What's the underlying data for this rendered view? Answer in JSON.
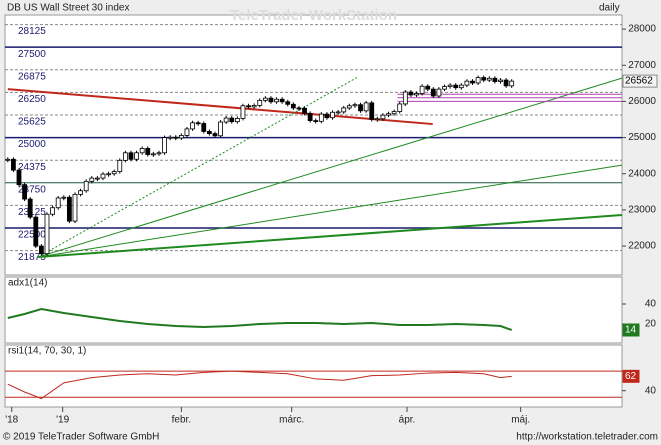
{
  "chart_data": [
    {
      "type": "candlestick",
      "title": "DB US Wall Street 30 index",
      "period": "daily",
      "watermark": "TeleTrader WorkStation",
      "x": [
        0,
        1,
        2,
        3,
        4,
        5,
        6,
        7,
        8,
        9,
        10,
        11,
        12,
        13,
        14,
        15,
        16,
        17,
        18,
        19,
        20,
        21,
        22,
        23,
        24,
        25,
        26,
        27,
        28,
        29,
        30,
        31,
        32,
        33,
        34,
        35,
        36,
        37,
        38,
        39,
        40,
        41,
        42,
        43,
        44,
        45,
        46,
        47,
        48,
        49,
        50,
        51,
        52,
        53,
        54,
        55,
        56,
        57,
        58,
        59,
        60,
        61,
        62,
        63,
        64,
        65,
        66,
        67,
        68,
        69,
        70,
        71,
        72,
        73,
        74,
        75,
        76,
        77,
        78,
        79,
        80,
        81,
        82,
        83,
        84,
        85,
        86,
        87,
        88,
        89,
        90
      ],
      "values": [
        24400,
        24100,
        23700,
        23300,
        22800,
        22000,
        21790,
        22880,
        23060,
        23330,
        23350,
        22690,
        23430,
        23530,
        23790,
        23880,
        23880,
        23990,
        24000,
        24060,
        24370,
        24580,
        24400,
        24580,
        24700,
        24530,
        24550,
        24580,
        25000,
        25010,
        24990,
        25060,
        25240,
        25410,
        25390,
        25170,
        25110,
        25050,
        25430,
        25540,
        25440,
        25530,
        25880,
        25850,
        25890,
        26030,
        26090,
        25990,
        26060,
        25990,
        25920,
        25820,
        25810,
        25670,
        25470,
        25450,
        25650,
        25550,
        25700,
        25710,
        25820,
        25880,
        25910,
        25740,
        25960,
        25500,
        25520,
        25620,
        25660,
        25720,
        25930,
        26260,
        26180,
        26220,
        26420,
        26340,
        26150,
        26340,
        26410,
        26450,
        26380,
        26450,
        26560,
        26510,
        26660,
        26590,
        26640,
        26550,
        26590,
        26430,
        26560
      ],
      "last_value": 26562,
      "xlim": [
        -0.5,
        109.7
      ],
      "ylim": [
        21200,
        28390
      ],
      "yticks": [
        22000,
        23000,
        24000,
        25000,
        26000,
        27000,
        28000
      ],
      "xticks": [
        {
          "value": 0.7,
          "label": "'18"
        },
        {
          "value": 9.8,
          "label": "'19"
        },
        {
          "value": 31,
          "label": "febr."
        },
        {
          "value": 50.7,
          "label": "márc."
        },
        {
          "value": 71.3,
          "label": "ápr."
        },
        {
          "value": 91.6,
          "label": "máj."
        }
      ],
      "levels": [
        {
          "value": 28125,
          "style": "dashed"
        },
        {
          "value": 27500,
          "style": "solid"
        },
        {
          "value": 26875,
          "style": "dashed"
        },
        {
          "value": 26250,
          "style": "dashed"
        },
        {
          "value": 25625,
          "style": "dashed"
        },
        {
          "value": 25000,
          "style": "solid"
        },
        {
          "value": 24375,
          "style": "dashed"
        },
        {
          "value": 23750,
          "style": "thin"
        },
        {
          "value": 23125,
          "style": "dashed"
        },
        {
          "value": 22500,
          "style": "solid"
        },
        {
          "value": 21875,
          "style": "dashed"
        }
      ],
      "trendlines": [
        {
          "color": "#c0281c",
          "width": 2,
          "x": [
            0,
            75.9
          ],
          "y": [
            26341,
            25374
          ]
        },
        {
          "color": "#1f8a1f",
          "width": 1,
          "x": [
            5.4,
            109.7
          ],
          "y": [
            21696,
            26645
          ]
        },
        {
          "color": "#1f8a1f",
          "width": 1,
          "x": [
            5.4,
            109.7
          ],
          "y": [
            21696,
            24240
          ]
        },
        {
          "color": "#1f8a1f",
          "width": 2,
          "x": [
            5.4,
            109.7
          ],
          "y": [
            21696,
            22858
          ]
        },
        {
          "color": "#1f8a1f",
          "width": 1,
          "dash": true,
          "x": [
            5.4,
            62.5
          ],
          "y": [
            21696,
            26673
          ]
        },
        {
          "color": "#b040b0",
          "width": 1,
          "x": [
            69.6,
            109.7
          ],
          "y": [
            26200,
            26200
          ]
        },
        {
          "color": "#b040b0",
          "width": 1,
          "x": [
            69.6,
            109.7
          ],
          "y": [
            26100,
            26100
          ]
        },
        {
          "color": "#b040b0",
          "width": 1,
          "x": [
            69.6,
            109.7
          ],
          "y": [
            26000,
            26000
          ]
        }
      ]
    },
    {
      "type": "line",
      "title": "adx1(14)",
      "color": "#1f7a1f",
      "x": [
        0,
        3,
        6,
        10,
        15,
        20,
        25,
        30,
        35,
        40,
        45,
        50,
        55,
        60,
        65,
        70,
        75,
        80,
        85,
        88,
        90
      ],
      "values": [
        26,
        30,
        35,
        31,
        27,
        23,
        20,
        18,
        17,
        18,
        20,
        21,
        21,
        20,
        21,
        19,
        19,
        20,
        19,
        18,
        14
      ],
      "last_value": 14,
      "ylim": [
        1,
        67
      ],
      "yticks": [
        20,
        40
      ]
    },
    {
      "type": "line",
      "title": "rsi1(14, 70, 30, 1)",
      "color": "#c0281c",
      "x": [
        0,
        3,
        6,
        10,
        15,
        20,
        25,
        30,
        35,
        40,
        45,
        50,
        55,
        60,
        65,
        70,
        75,
        80,
        85,
        88,
        90
      ],
      "values": [
        50,
        38,
        28,
        52,
        60,
        64,
        66,
        64,
        68,
        70,
        68,
        66,
        58,
        56,
        63,
        64,
        67,
        68,
        66,
        60,
        62
      ],
      "last_value": 62,
      "ylim": [
        15,
        110
      ],
      "yticks": [
        40
      ],
      "levels": [
        70,
        30
      ]
    }
  ],
  "footer": "© 2019 TeleTrader Software GmbH",
  "url": "http://workstation.teletrader.com"
}
